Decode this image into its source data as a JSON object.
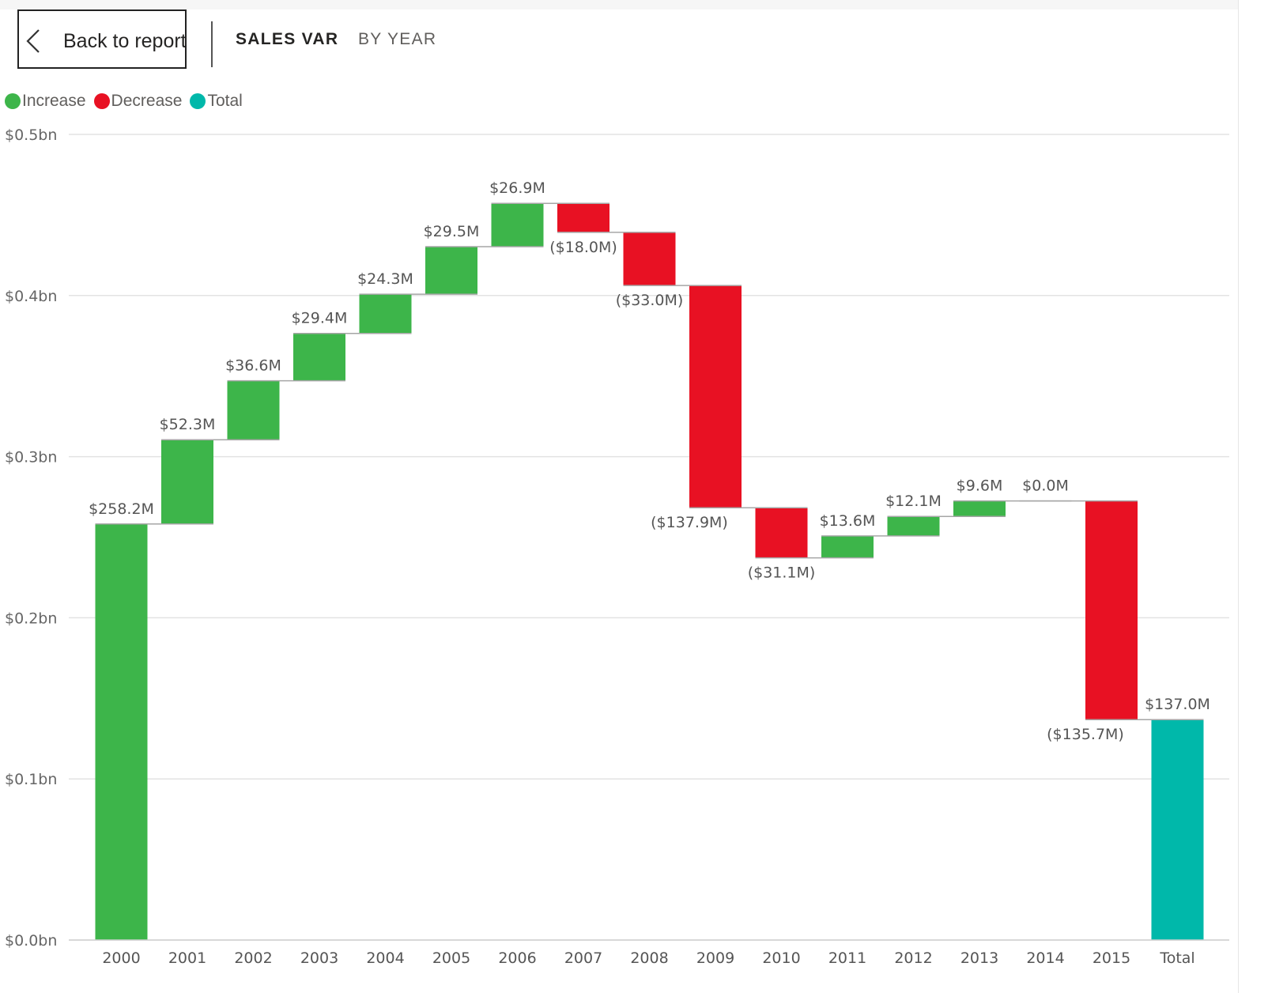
{
  "header": {
    "back_label": "Back to report",
    "breadcrumbs": [
      {
        "label": "SALES VAR",
        "active": true
      },
      {
        "label": "BY YEAR",
        "active": false
      }
    ]
  },
  "legend": [
    {
      "label": "Increase",
      "color": "#3db54a"
    },
    {
      "label": "Decrease",
      "color": "#e81123"
    },
    {
      "label": "Total",
      "color": "#00b8aa"
    }
  ],
  "chart_data": {
    "type": "waterfall",
    "title": "",
    "xlabel": "",
    "ylabel": "",
    "ylim": [
      0,
      0.5
    ],
    "y_unit": "bn",
    "y_ticks": [
      "$0.0bn",
      "$0.1bn",
      "$0.2bn",
      "$0.3bn",
      "$0.4bn",
      "$0.5bn"
    ],
    "grid": true,
    "legend_position": "top-left",
    "categories": [
      "2000",
      "2001",
      "2002",
      "2003",
      "2004",
      "2005",
      "2006",
      "2007",
      "2008",
      "2009",
      "2010",
      "2011",
      "2012",
      "2013",
      "2014",
      "2015",
      "Total"
    ],
    "values": [
      258.2,
      52.3,
      36.6,
      29.4,
      24.3,
      29.5,
      26.9,
      -18.0,
      -33.0,
      -137.9,
      -31.1,
      13.6,
      12.1,
      9.6,
      0.0,
      -135.7,
      137.0
    ],
    "value_unit": "M",
    "kinds": [
      "increase",
      "increase",
      "increase",
      "increase",
      "increase",
      "increase",
      "increase",
      "decrease",
      "decrease",
      "decrease",
      "decrease",
      "increase",
      "increase",
      "increase",
      "increase",
      "decrease",
      "total"
    ],
    "data_labels": [
      "$258.2M",
      "$52.3M",
      "$36.6M",
      "$29.4M",
      "$24.3M",
      "$29.5M",
      "$26.9M",
      "($18.0M)",
      "($33.0M)",
      "($137.9M)",
      "($31.1M)",
      "$13.6M",
      "$12.1M",
      "$9.6M",
      "$0.0M",
      "($135.7M)",
      "$137.0M"
    ],
    "colors": {
      "increase": "#3db54a",
      "decrease": "#e81123",
      "total": "#00b8aa"
    }
  }
}
